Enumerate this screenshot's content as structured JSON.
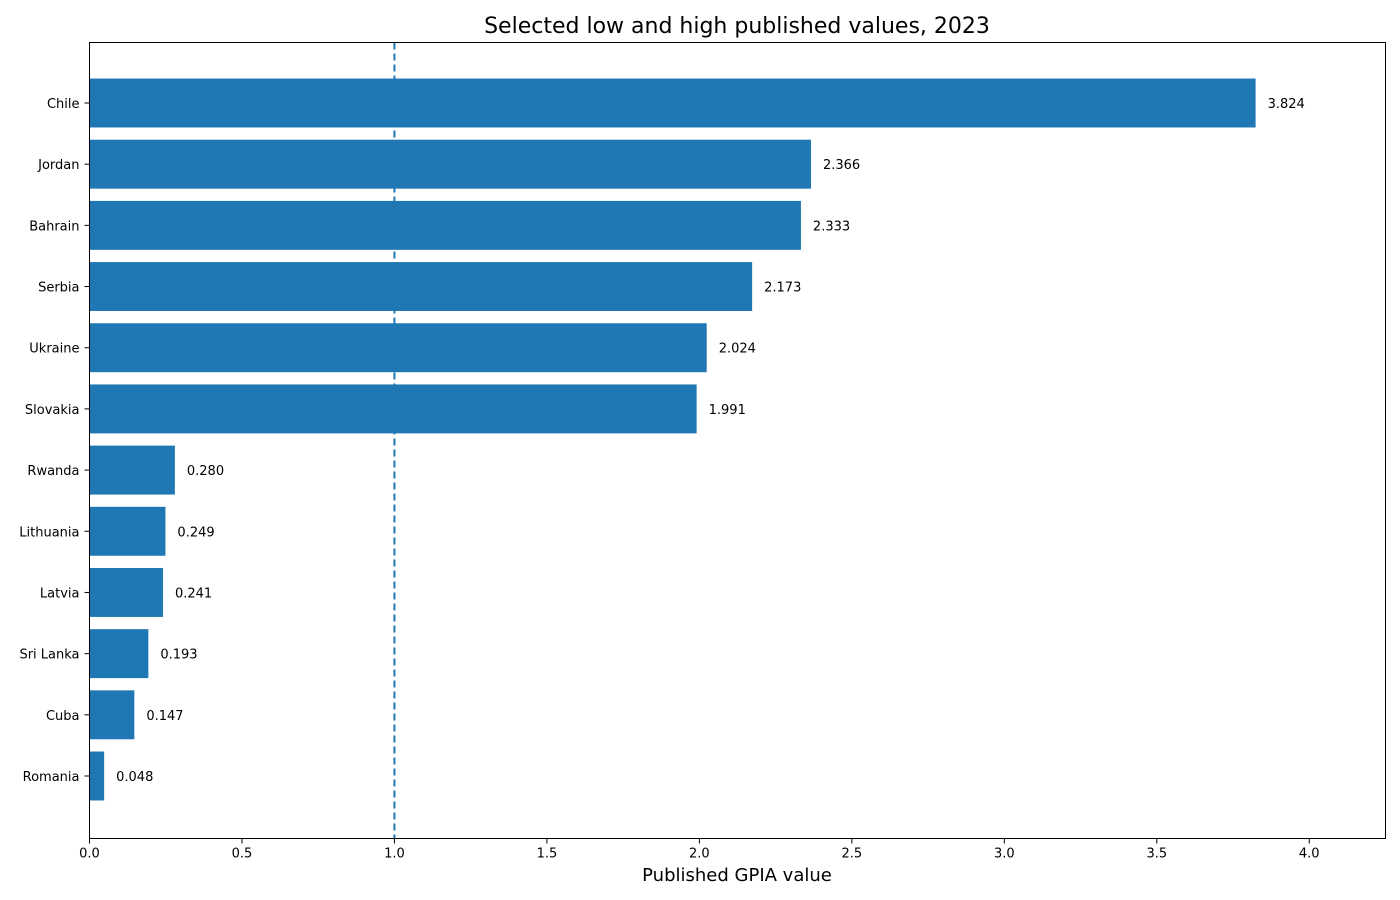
{
  "chart_data": {
    "type": "bar",
    "orientation": "horizontal",
    "title": "Selected low and high published values, 2023",
    "xlabel": "Published GPIA value",
    "ylabel": "",
    "categories": [
      "Chile",
      "Jordan",
      "Bahrain",
      "Serbia",
      "Ukraine",
      "Slovakia",
      "Rwanda",
      "Lithuania",
      "Latvia",
      "Sri Lanka",
      "Cuba",
      "Romania"
    ],
    "values": [
      3.824,
      2.366,
      2.333,
      2.173,
      2.024,
      1.991,
      0.28,
      0.249,
      0.241,
      0.193,
      0.147,
      0.048
    ],
    "value_labels": [
      "3.824",
      "2.366",
      "2.333",
      "2.173",
      "2.024",
      "1.991",
      "0.280",
      "0.249",
      "0.241",
      "0.193",
      "0.147",
      "0.048"
    ],
    "xlim": [
      0,
      4.25
    ],
    "xticks": [
      0.0,
      0.5,
      1.0,
      1.5,
      2.0,
      2.5,
      3.0,
      3.5,
      4.0
    ],
    "xtick_labels": [
      "0.0",
      "0.5",
      "1.0",
      "1.5",
      "2.0",
      "2.5",
      "3.0",
      "3.5",
      "4.0"
    ],
    "reference_line": {
      "x": 1.0,
      "style": "dashed"
    },
    "bar_color": "#1f77b4",
    "reference_line_color": "#1f77b4",
    "grid": false,
    "legend": "none"
  }
}
